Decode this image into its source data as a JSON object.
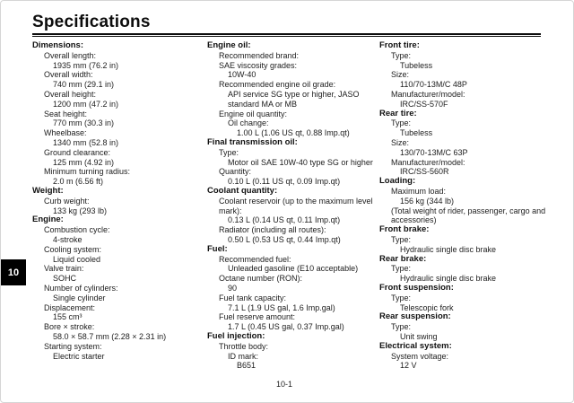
{
  "page": {
    "title": "Specifications",
    "chapter_tab": "10",
    "page_number": "10-1"
  },
  "colors": {
    "text": "#1a1a1a",
    "page_background": "#ffffff",
    "page_border": "#d6d6d6",
    "tab_background": "#000000",
    "tab_text": "#ffffff"
  },
  "columns": [
    {
      "sections": [
        {
          "title": "Dimensions:",
          "items": [
            {
              "text": "Overall length:",
              "level": 1
            },
            {
              "text": "1935 mm (76.2 in)",
              "level": 2
            },
            {
              "text": "Overall width:",
              "level": 1
            },
            {
              "text": "740 mm (29.1 in)",
              "level": 2
            },
            {
              "text": "Overall height:",
              "level": 1
            },
            {
              "text": "1200 mm (47.2 in)",
              "level": 2
            },
            {
              "text": "Seat height:",
              "level": 1
            },
            {
              "text": "770 mm (30.3 in)",
              "level": 2
            },
            {
              "text": "Wheelbase:",
              "level": 1
            },
            {
              "text": "1340 mm (52.8 in)",
              "level": 2
            },
            {
              "text": "Ground clearance:",
              "level": 1
            },
            {
              "text": "125 mm (4.92 in)",
              "level": 2
            },
            {
              "text": "Minimum turning radius:",
              "level": 1
            },
            {
              "text": "2.0 m (6.56 ft)",
              "level": 2
            }
          ]
        },
        {
          "title": "Weight:",
          "items": [
            {
              "text": "Curb weight:",
              "level": 1
            },
            {
              "text": "133 kg (293 lb)",
              "level": 2
            }
          ]
        },
        {
          "title": "Engine:",
          "items": [
            {
              "text": "Combustion cycle:",
              "level": 1
            },
            {
              "text": "4-stroke",
              "level": 2
            },
            {
              "text": "Cooling system:",
              "level": 1
            },
            {
              "text": "Liquid cooled",
              "level": 2
            },
            {
              "text": "Valve train:",
              "level": 1
            },
            {
              "text": "SOHC",
              "level": 2
            },
            {
              "text": "Number of cylinders:",
              "level": 1
            },
            {
              "text": "Single cylinder",
              "level": 2
            },
            {
              "text": "Displacement:",
              "level": 1
            },
            {
              "text": "155 cm³",
              "level": 2
            },
            {
              "text": "Bore × stroke:",
              "level": 1
            },
            {
              "text": "58.0 × 58.7 mm (2.28 × 2.31 in)",
              "level": 2
            },
            {
              "text": "Starting system:",
              "level": 1
            },
            {
              "text": "Electric starter",
              "level": 2
            }
          ]
        }
      ]
    },
    {
      "sections": [
        {
          "title": "Engine oil:",
          "items": [
            {
              "text": "Recommended brand:",
              "level": 1
            },
            {
              "text": "SAE viscosity grades:",
              "level": 1
            },
            {
              "text": "10W-40",
              "level": 2
            },
            {
              "text": "Recommended engine oil grade:",
              "level": 1
            },
            {
              "text": "API service SG type or higher, JASO",
              "level": 2
            },
            {
              "text": "standard MA or MB",
              "level": 2
            },
            {
              "text": "Engine oil quantity:",
              "level": 1
            },
            {
              "text": "Oil change:",
              "level": 2
            },
            {
              "text": "1.00 L (1.06 US qt, 0.88 Imp.qt)",
              "level": 3
            }
          ]
        },
        {
          "title": "Final transmission oil:",
          "items": [
            {
              "text": "Type:",
              "level": 1
            },
            {
              "text": "Motor oil SAE 10W-40 type SG or higher",
              "level": 2
            },
            {
              "text": "Quantity:",
              "level": 1
            },
            {
              "text": "0.10 L (0.11 US qt, 0.09 Imp.qt)",
              "level": 2
            }
          ]
        },
        {
          "title": "Coolant quantity:",
          "items": [
            {
              "text": "Coolant reservoir (up to the maximum level",
              "level": 1
            },
            {
              "text": "mark):",
              "level": 1
            },
            {
              "text": "0.13 L (0.14 US qt, 0.11 Imp.qt)",
              "level": 2
            },
            {
              "text": "Radiator (including all routes):",
              "level": 1
            },
            {
              "text": "0.50 L (0.53 US qt, 0.44 Imp.qt)",
              "level": 2
            }
          ]
        },
        {
          "title": "Fuel:",
          "items": [
            {
              "text": "Recommended fuel:",
              "level": 1
            },
            {
              "text": "Unleaded gasoline (E10 acceptable)",
              "level": 2
            },
            {
              "text": "Octane number (RON):",
              "level": 1
            },
            {
              "text": "90",
              "level": 2
            },
            {
              "text": "Fuel tank capacity:",
              "level": 1
            },
            {
              "text": "7.1 L (1.9 US gal, 1.6 Imp.gal)",
              "level": 2
            },
            {
              "text": "Fuel reserve amount:",
              "level": 1
            },
            {
              "text": "1.7 L (0.45 US gal, 0.37 Imp.gal)",
              "level": 2
            }
          ]
        },
        {
          "title": "Fuel injection:",
          "items": [
            {
              "text": "Throttle body:",
              "level": 1
            },
            {
              "text": "ID mark:",
              "level": 2
            },
            {
              "text": "B651",
              "level": 3
            }
          ]
        }
      ]
    },
    {
      "sections": [
        {
          "title": "Front tire:",
          "items": [
            {
              "text": "Type:",
              "level": 1
            },
            {
              "text": "Tubeless",
              "level": 2
            },
            {
              "text": "Size:",
              "level": 1
            },
            {
              "text": "110/70-13M/C 48P",
              "level": 2
            },
            {
              "text": "Manufacturer/model:",
              "level": 1
            },
            {
              "text": "IRC/SS-570F",
              "level": 2
            }
          ]
        },
        {
          "title": "Rear tire:",
          "items": [
            {
              "text": "Type:",
              "level": 1
            },
            {
              "text": "Tubeless",
              "level": 2
            },
            {
              "text": "Size:",
              "level": 1
            },
            {
              "text": "130/70-13M/C 63P",
              "level": 2
            },
            {
              "text": "Manufacturer/model:",
              "level": 1
            },
            {
              "text": "IRC/SS-560R",
              "level": 2
            }
          ]
        },
        {
          "title": "Loading:",
          "items": [
            {
              "text": "Maximum load:",
              "level": 1
            },
            {
              "text": "156 kg (344 lb)",
              "level": 2
            },
            {
              "text": "(Total weight of rider, passenger, cargo and",
              "level": 1
            },
            {
              "text": "accessories)",
              "level": 1
            }
          ]
        },
        {
          "title": "Front brake:",
          "items": [
            {
              "text": "Type:",
              "level": 1
            },
            {
              "text": "Hydraulic single disc brake",
              "level": 2
            }
          ]
        },
        {
          "title": "Rear brake:",
          "items": [
            {
              "text": "Type:",
              "level": 1
            },
            {
              "text": "Hydraulic single disc brake",
              "level": 2
            }
          ]
        },
        {
          "title": "Front suspension:",
          "items": [
            {
              "text": "Type:",
              "level": 1
            },
            {
              "text": "Telescopic fork",
              "level": 2
            }
          ]
        },
        {
          "title": "Rear suspension:",
          "items": [
            {
              "text": "Type:",
              "level": 1
            },
            {
              "text": "Unit swing",
              "level": 2
            }
          ]
        },
        {
          "title": "Electrical system:",
          "items": [
            {
              "text": "System voltage:",
              "level": 1
            },
            {
              "text": "12 V",
              "level": 2
            }
          ]
        }
      ]
    }
  ]
}
